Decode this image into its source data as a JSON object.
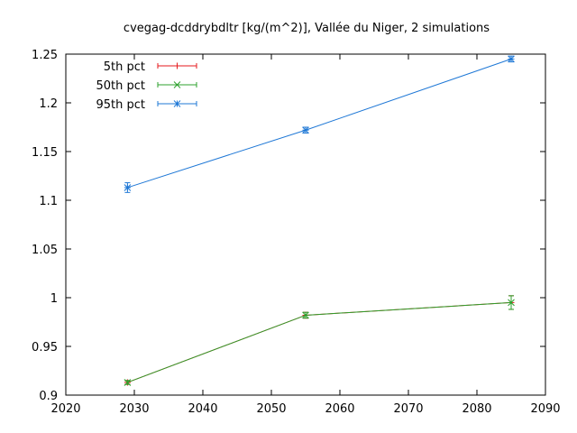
{
  "chart_data": {
    "type": "line",
    "title": "cvegag-dcddrybdltr [kg/(m^2)], Vallée du Niger, 2 simulations",
    "xlabel": "",
    "ylabel": "",
    "xlim": [
      2020,
      2090
    ],
    "ylim": [
      0.9,
      1.25
    ],
    "xticks": [
      2020,
      2030,
      2040,
      2050,
      2060,
      2070,
      2080,
      2090
    ],
    "yticks": [
      0.9,
      0.95,
      1,
      1.05,
      1.1,
      1.15,
      1.2,
      1.25
    ],
    "grid": false,
    "legend_position": "top-left",
    "series": [
      {
        "name": "5th pct",
        "color": "#e41a1c",
        "marker": "plus",
        "points": [
          {
            "x": 2029,
            "y": 0.913,
            "err": 0.002
          },
          {
            "x": 2055,
            "y": 0.982,
            "err": 0.003
          },
          {
            "x": 2085,
            "y": 0.995,
            "err": 0.007
          }
        ]
      },
      {
        "name": "50th pct",
        "color": "#2ca02c",
        "marker": "cross",
        "points": [
          {
            "x": 2029,
            "y": 0.913,
            "err": 0.002
          },
          {
            "x": 2055,
            "y": 0.982,
            "err": 0.003
          },
          {
            "x": 2085,
            "y": 0.995,
            "err": 0.007
          }
        ]
      },
      {
        "name": "95th pct",
        "color": "#1f78d6",
        "marker": "star",
        "points": [
          {
            "x": 2029,
            "y": 1.113,
            "err": 0.005
          },
          {
            "x": 2055,
            "y": 1.172,
            "err": 0.003
          },
          {
            "x": 2085,
            "y": 1.245,
            "err": 0.003
          }
        ]
      }
    ]
  }
}
